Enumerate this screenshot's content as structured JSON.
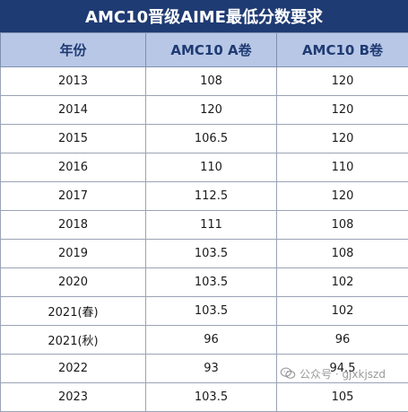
{
  "title": "AMC10晋级AIME最低分数要求",
  "table": {
    "headers": [
      "年份",
      "AMC10 A卷",
      "AMC10 B卷"
    ],
    "rows": [
      [
        "2013",
        "108",
        "120"
      ],
      [
        "2014",
        "120",
        "120"
      ],
      [
        "2015",
        "106.5",
        "120"
      ],
      [
        "2016",
        "110",
        "110"
      ],
      [
        "2017",
        "112.5",
        "120"
      ],
      [
        "2018",
        "111",
        "108"
      ],
      [
        "2019",
        "103.5",
        "108"
      ],
      [
        "2020",
        "103.5",
        "102"
      ],
      [
        "2021(春)",
        "103.5",
        "102"
      ],
      [
        "2021(秋)",
        "96",
        "96"
      ],
      [
        "2022",
        "93",
        "94.5"
      ],
      [
        "2023",
        "103.5",
        "105"
      ]
    ]
  },
  "watermark": {
    "text": "公众号 · gjxkjszd",
    "icon": "wechat-icon"
  }
}
